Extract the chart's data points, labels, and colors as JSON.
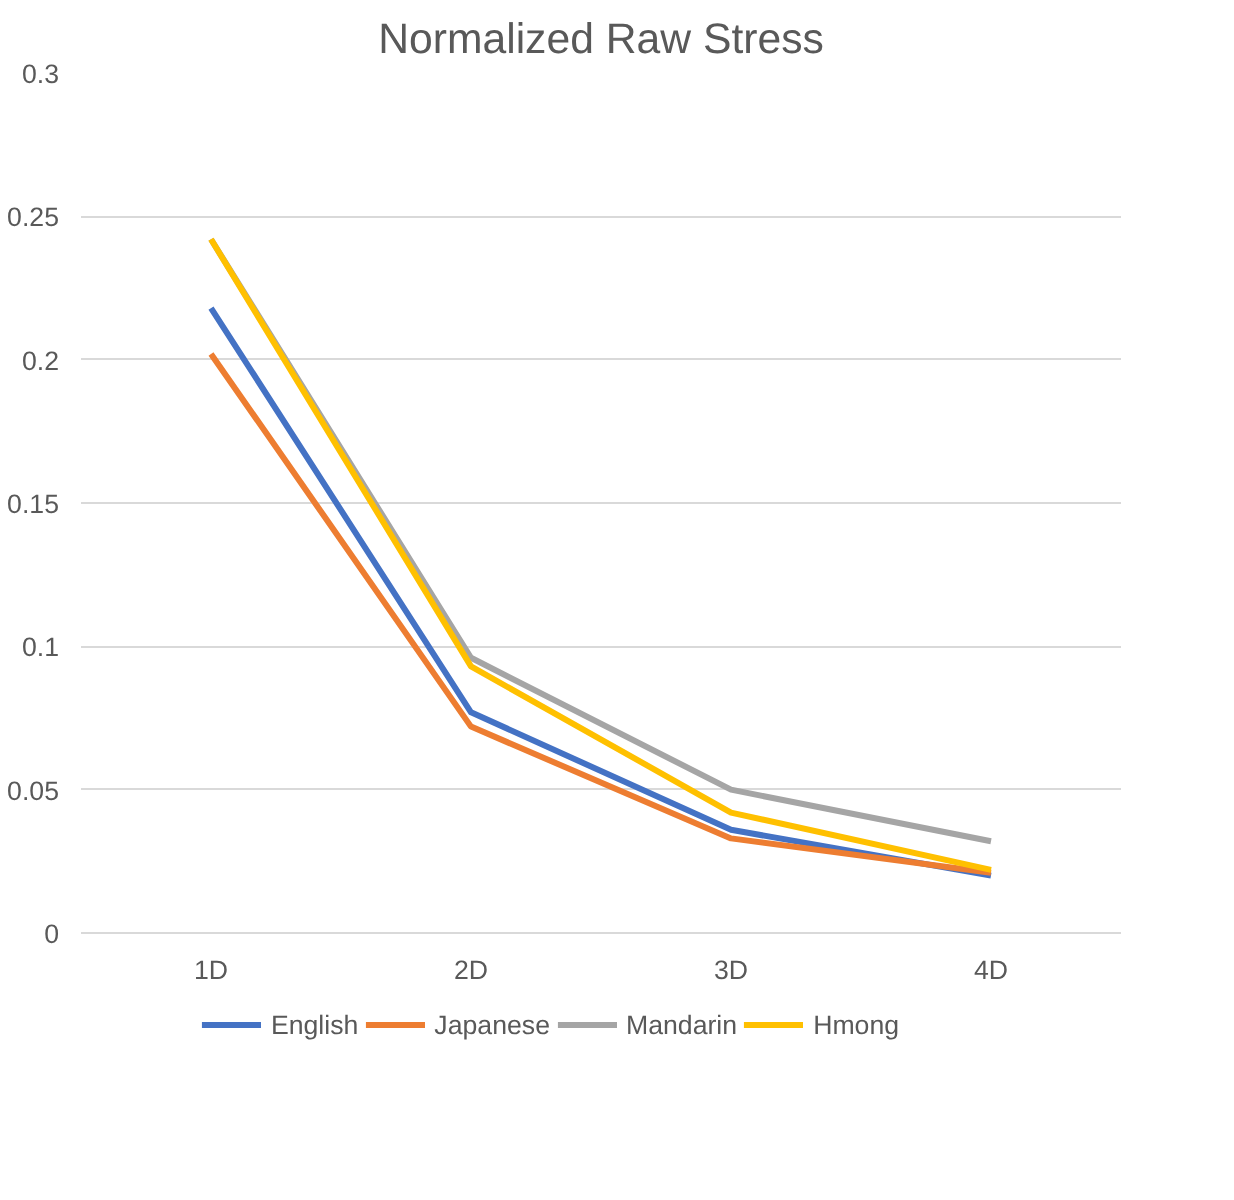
{
  "chart_data": {
    "type": "line",
    "title": "Normalized Raw Stress",
    "categories": [
      "1D",
      "2D",
      "3D",
      "4D"
    ],
    "series": [
      {
        "name": "English",
        "color": "#4472c4",
        "values": [
          0.218,
          0.077,
          0.036,
          0.02
        ]
      },
      {
        "name": "Japanese",
        "color": "#ed7d31",
        "values": [
          0.202,
          0.072,
          0.033,
          0.021
        ]
      },
      {
        "name": "Mandarin",
        "color": "#a5a5a5",
        "values": [
          0.242,
          0.096,
          0.05,
          0.032
        ]
      },
      {
        "name": "Hmong",
        "color": "#ffc000",
        "values": [
          0.242,
          0.093,
          0.042,
          0.022
        ]
      }
    ],
    "ylim": [
      0,
      0.3
    ],
    "yticks": [
      0,
      0.05,
      0.1,
      0.15,
      0.2,
      0.25,
      0.3
    ],
    "grid": "y",
    "legend": "bottom",
    "marker": "none",
    "line_style": "solid"
  }
}
